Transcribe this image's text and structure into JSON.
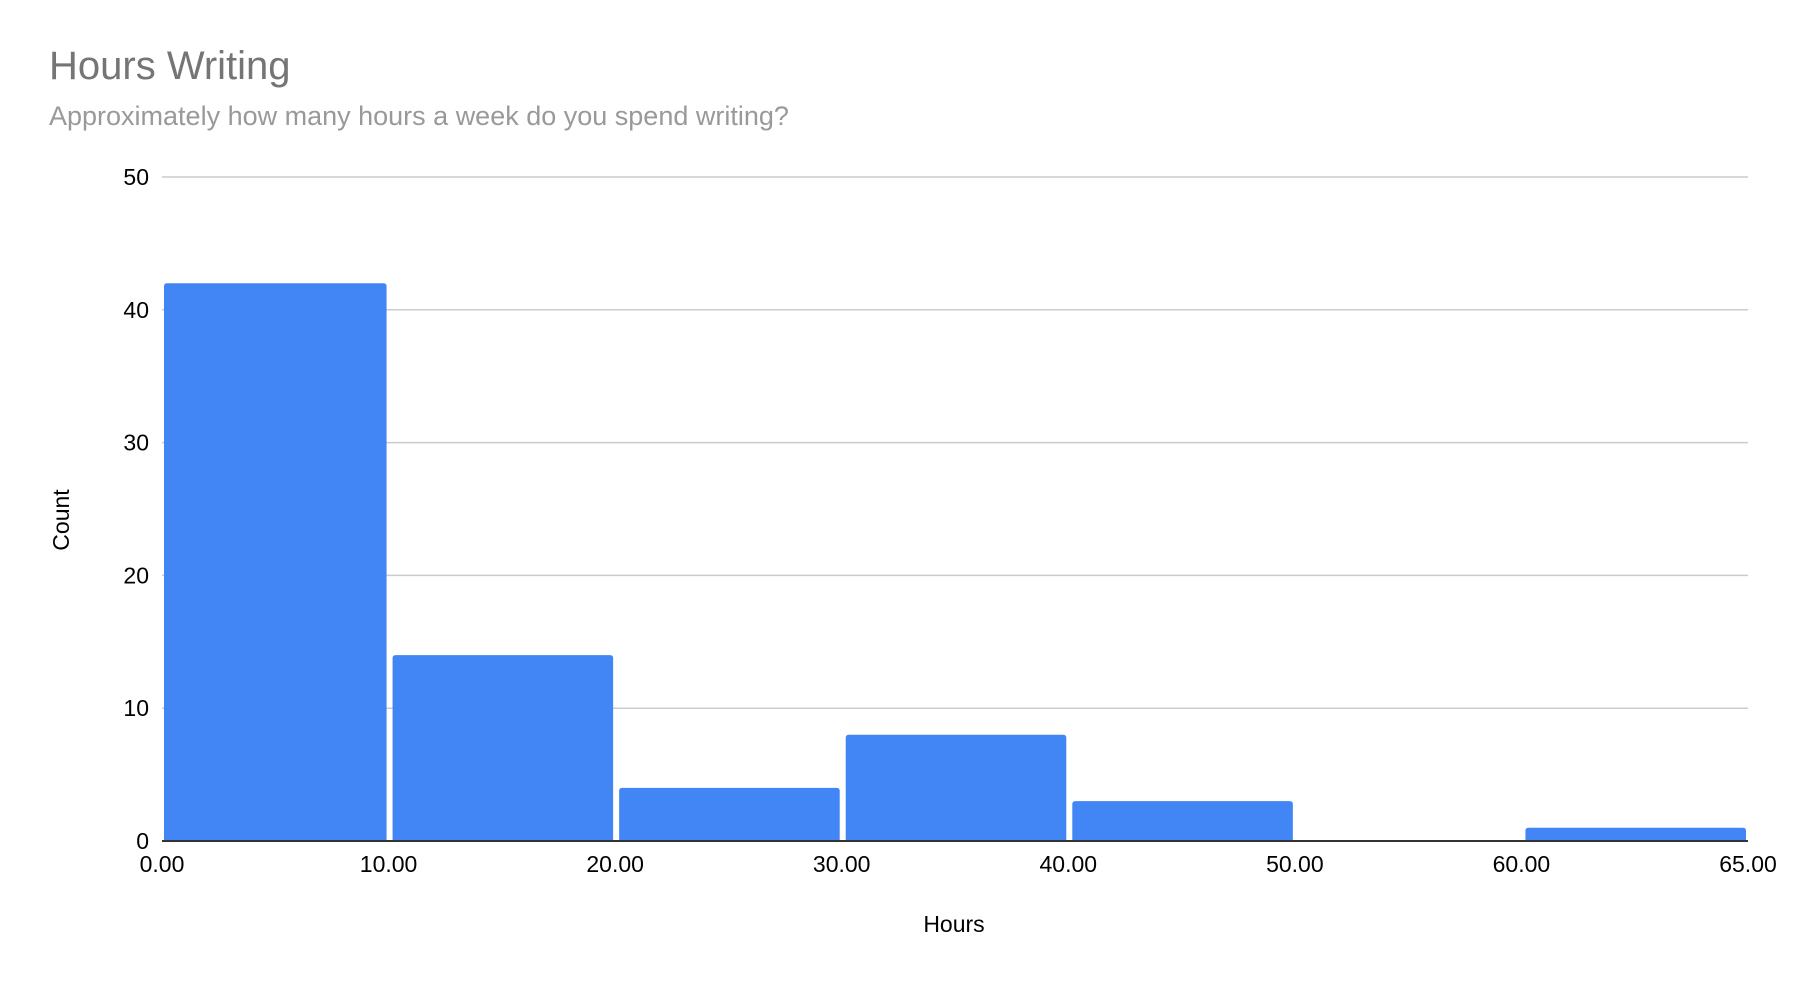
{
  "chart_data": {
    "type": "bar",
    "title": "Hours Writing",
    "subtitle": "Approximately how many hours a week do you spend writing?",
    "xlabel": "Hours",
    "ylabel": "Count",
    "bin_edges": [
      "0.00",
      "10.00",
      "20.00",
      "30.00",
      "40.00",
      "50.00",
      "60.00",
      "65.00"
    ],
    "categories": [
      "0-10",
      "10-20",
      "20-30",
      "30-40",
      "40-50",
      "50-60",
      "60-65"
    ],
    "values": [
      42,
      14,
      4,
      8,
      3,
      0,
      1
    ],
    "ylim": [
      0,
      50
    ],
    "yticks": [
      0,
      10,
      20,
      30,
      40,
      50
    ],
    "grid": true,
    "legend": "none",
    "colors": {
      "bar": "#4285f4",
      "grid": "#cccccc",
      "axis": "#333333"
    }
  }
}
